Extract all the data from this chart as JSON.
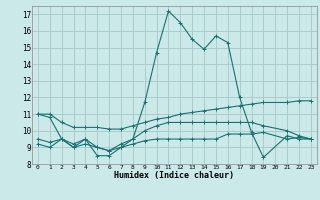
{
  "xlabel": "Humidex (Indice chaleur)",
  "ylabel": "",
  "xlim": [
    -0.5,
    23.5
  ],
  "ylim": [
    8,
    17.5
  ],
  "yticks": [
    8,
    9,
    10,
    11,
    12,
    13,
    14,
    15,
    16,
    17
  ],
  "xticks": [
    0,
    1,
    2,
    3,
    4,
    5,
    6,
    7,
    8,
    9,
    10,
    11,
    12,
    13,
    14,
    15,
    16,
    17,
    18,
    19,
    20,
    21,
    22,
    23
  ],
  "bg_color": "#cce9e9",
  "grid_color": "#aacccc",
  "line_color": "#1a7070",
  "lines": [
    {
      "x": [
        0,
        1,
        2,
        3,
        4,
        5,
        6,
        7,
        8,
        9,
        10,
        11,
        12,
        13,
        14,
        15,
        16,
        17,
        18,
        19,
        21,
        22,
        23
      ],
      "y": [
        11.0,
        10.8,
        9.5,
        9.0,
        9.5,
        8.5,
        8.5,
        9.0,
        9.5,
        11.7,
        14.7,
        17.2,
        16.5,
        15.5,
        14.9,
        15.7,
        15.3,
        12.0,
        9.9,
        8.4,
        9.7,
        9.5,
        9.5
      ]
    },
    {
      "x": [
        0,
        1,
        2,
        3,
        4,
        5,
        6,
        7,
        8,
        9,
        10,
        11,
        12,
        13,
        14,
        15,
        16,
        17,
        18,
        19,
        21,
        22,
        23
      ],
      "y": [
        9.2,
        9.0,
        9.5,
        9.0,
        9.2,
        9.0,
        8.8,
        9.0,
        9.2,
        9.4,
        9.5,
        9.5,
        9.5,
        9.5,
        9.5,
        9.5,
        9.8,
        9.8,
        9.8,
        9.9,
        9.5,
        9.6,
        9.5
      ]
    },
    {
      "x": [
        0,
        1,
        2,
        3,
        4,
        5,
        6,
        7,
        8,
        9,
        10,
        11,
        12,
        13,
        14,
        15,
        16,
        17,
        18,
        19,
        21,
        22,
        23
      ],
      "y": [
        11.0,
        11.0,
        10.5,
        10.2,
        10.2,
        10.2,
        10.1,
        10.1,
        10.3,
        10.5,
        10.7,
        10.8,
        11.0,
        11.1,
        11.2,
        11.3,
        11.4,
        11.5,
        11.6,
        11.7,
        11.7,
        11.8,
        11.8
      ]
    },
    {
      "x": [
        0,
        1,
        2,
        3,
        4,
        5,
        6,
        7,
        8,
        9,
        10,
        11,
        12,
        13,
        14,
        15,
        16,
        17,
        18,
        19,
        21,
        22,
        23
      ],
      "y": [
        9.5,
        9.3,
        9.5,
        9.2,
        9.5,
        9.0,
        8.8,
        9.2,
        9.5,
        10.0,
        10.3,
        10.5,
        10.5,
        10.5,
        10.5,
        10.5,
        10.5,
        10.5,
        10.5,
        10.3,
        10.0,
        9.7,
        9.5
      ]
    }
  ]
}
